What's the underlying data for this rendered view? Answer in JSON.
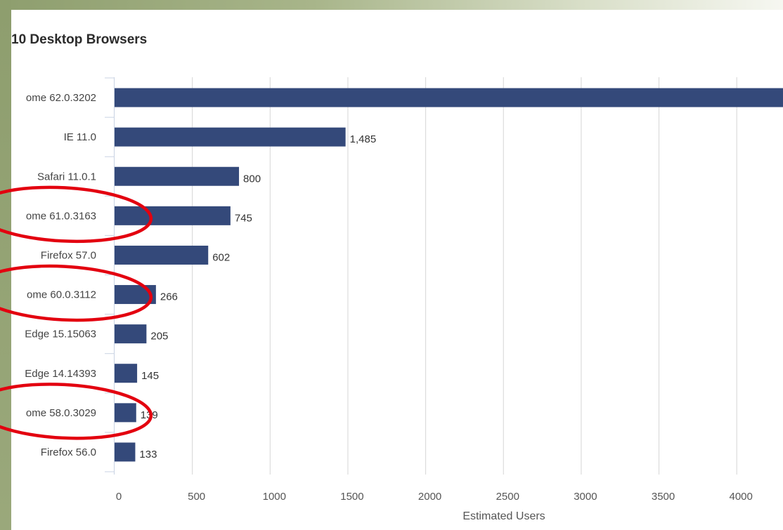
{
  "chart_data": {
    "type": "bar",
    "orientation": "horizontal",
    "title": "10 Desktop Browsers",
    "xlabel": "Estimated Users",
    "ylabel": "",
    "xlim": [
      0,
      4200
    ],
    "x_ticks": [
      "0",
      "500",
      "1000",
      "1500",
      "2000",
      "2500",
      "3000",
      "3500",
      "4000"
    ],
    "grid": true,
    "categories": [
      "ome 62.0.3202",
      "IE 11.0",
      "Safari 11.0.1",
      "ome 61.0.3163",
      "Firefox 57.0",
      "ome 60.0.3112",
      "Edge 15.15063",
      "Edge 14.14393",
      "ome 58.0.3029",
      "Firefox 56.0"
    ],
    "values": [
      4300,
      1485,
      800,
      745,
      602,
      266,
      205,
      145,
      139,
      133
    ],
    "data_labels": [
      "",
      "1,485",
      "800",
      "745",
      "602",
      "266",
      "205",
      "145",
      "139",
      "133"
    ],
    "bar_color": "#34497a",
    "annotation_color": "#e3000f",
    "circled_categories": [
      "ome 61.0.3163",
      "ome 60.0.3112",
      "ome 58.0.3029"
    ]
  }
}
